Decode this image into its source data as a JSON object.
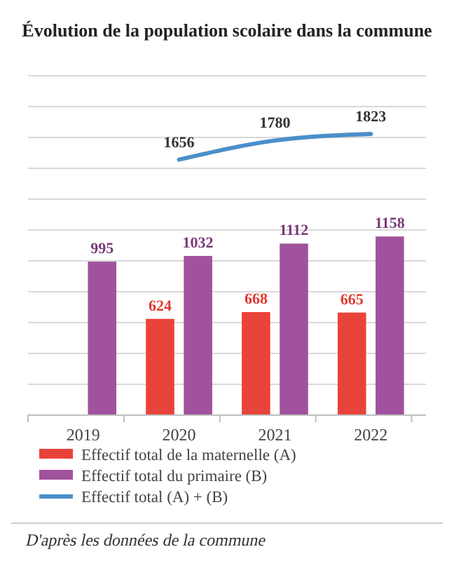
{
  "chart_data": {
    "type": "bar",
    "title": "Évolution de la population scolaire dans la commune",
    "categories": [
      "2019",
      "2020",
      "2021",
      "2022"
    ],
    "series": [
      {
        "name": "Effectif total de la maternelle (A)",
        "color": "#e8433a",
        "values": [
          null,
          624,
          668,
          665
        ]
      },
      {
        "name": "Effectif total du primaire (B)",
        "color": "#a0539c",
        "values": [
          995,
          1032,
          1112,
          1158
        ]
      },
      {
        "name": "Effectif total  (A) + (B)",
        "type": "line",
        "color": "#4a8fc9",
        "values": [
          null,
          1656,
          1780,
          1823
        ]
      }
    ],
    "ylim": [
      0,
      2200
    ],
    "yticks": [
      {
        "value": 0,
        "label": null
      },
      {
        "value": 200,
        "label": null
      },
      {
        "value": 400,
        "label": null
      },
      {
        "value": 600,
        "label": null
      },
      {
        "value": 800,
        "label": null
      },
      {
        "value": 1000,
        "label": null
      },
      {
        "value": 1200,
        "label": null
      },
      {
        "value": 1400,
        "label": null
      },
      {
        "value": 1600,
        "label": null
      },
      {
        "value": 1800,
        "label": null
      },
      {
        "value": 2000,
        "label": null
      },
      {
        "value": 2200,
        "label": null
      }
    ],
    "grid": "y",
    "tick_labels": "x",
    "data_labels": true,
    "legend": "bottom",
    "annotations": [
      "D'après les données de la commune"
    ]
  }
}
